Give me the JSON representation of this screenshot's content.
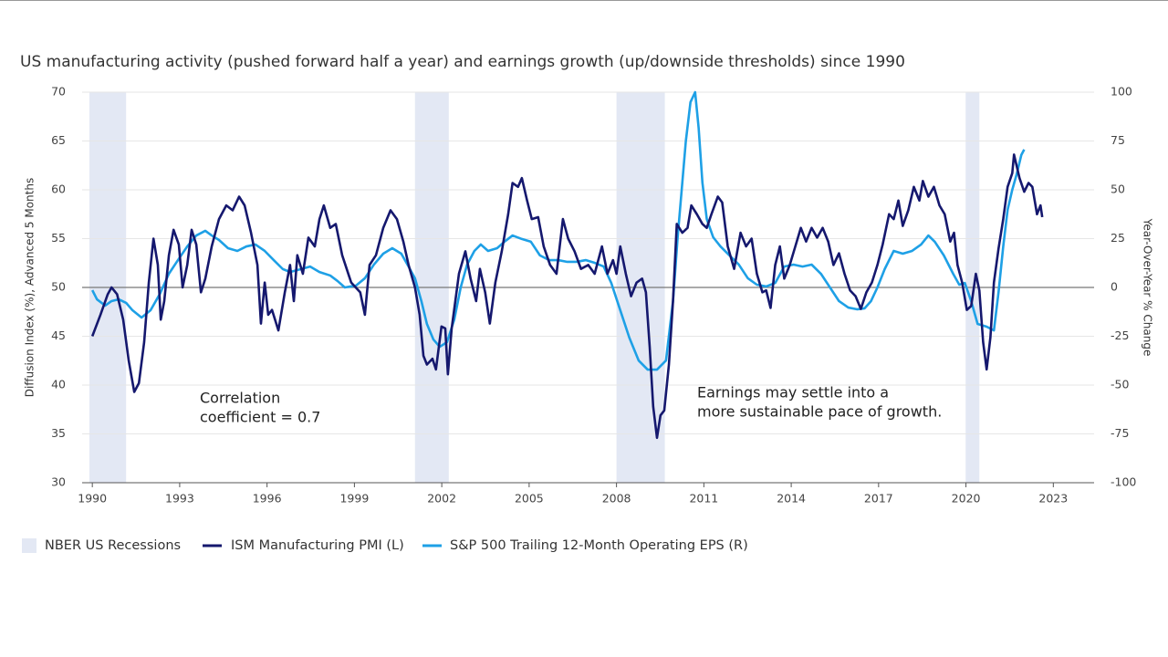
{
  "chart_data": {
    "type": "line",
    "title": "US manufacturing activity (pushed forward half a year) and earnings growth (up/downside thresholds) since 1990",
    "y_label": "Diffusion Index (%), Advanced 5 Months",
    "y2_label": "Year-Over-Year % Change",
    "xlim": [
      1989.65,
      2024.4
    ],
    "xticks": [
      1990,
      1993,
      1996,
      1999,
      2002,
      2005,
      2008,
      2011,
      2014,
      2017,
      2020,
      2023
    ],
    "ylim": [
      30,
      70
    ],
    "yticks": [
      30,
      35,
      40,
      45,
      50,
      55,
      60,
      65,
      70
    ],
    "y2lim": [
      -100,
      100
    ],
    "y2ticks": [
      -100,
      -75,
      -50,
      -25,
      0,
      25,
      50,
      75,
      100
    ],
    "grid": true,
    "reference_line": 50,
    "recessions": {
      "name": "NBER US Recessions",
      "color": "#e3e8f4",
      "periods": [
        [
          1989.9,
          1991.16
        ],
        [
          2001.08,
          2002.24
        ],
        [
          2008.0,
          2009.66
        ],
        [
          2019.99,
          2020.46
        ]
      ]
    },
    "annotations": [
      [
        "Correlation",
        "coefficient = 0.7"
      ],
      [
        "Earnings may settle into a",
        "more sustainable pace of growth."
      ]
    ],
    "series": [
      {
        "name": "ISM Manufacturing PMI (L)",
        "color": "#15186e",
        "axis": "y",
        "x": [
          1990.0,
          1990.28,
          1990.53,
          1990.66,
          1990.85,
          1991.06,
          1991.25,
          1991.44,
          1991.6,
          1991.78,
          1991.94,
          1992.1,
          1992.25,
          1992.35,
          1992.47,
          1992.63,
          1992.79,
          1992.97,
          1993.1,
          1993.26,
          1993.41,
          1993.57,
          1993.73,
          1993.88,
          1994.1,
          1994.35,
          1994.6,
          1994.82,
          1995.04,
          1995.23,
          1995.45,
          1995.67,
          1995.79,
          1995.92,
          1996.04,
          1996.17,
          1996.39,
          1996.61,
          1996.79,
          1996.92,
          1997.04,
          1997.23,
          1997.42,
          1997.64,
          1997.8,
          1997.95,
          1998.17,
          1998.36,
          1998.58,
          1998.89,
          1999.2,
          1999.36,
          1999.52,
          1999.74,
          1999.99,
          2000.24,
          2000.46,
          2000.68,
          2000.86,
          2001.08,
          2001.24,
          2001.37,
          2001.49,
          2001.68,
          2001.8,
          2001.99,
          2002.12,
          2002.21,
          2002.34,
          2002.59,
          2002.81,
          2002.99,
          2003.18,
          2003.31,
          2003.49,
          2003.65,
          2003.84,
          2004.06,
          2004.28,
          2004.43,
          2004.62,
          2004.75,
          2004.93,
          2005.09,
          2005.31,
          2005.5,
          2005.72,
          2005.94,
          2006.16,
          2006.34,
          2006.56,
          2006.78,
          2007.03,
          2007.25,
          2007.5,
          2007.69,
          2007.88,
          2008.0,
          2008.13,
          2008.32,
          2008.5,
          2008.69,
          2008.88,
          2009.01,
          2009.14,
          2009.26,
          2009.39,
          2009.51,
          2009.64,
          2009.8,
          2009.94,
          2010.07,
          2010.26,
          2010.44,
          2010.57,
          2010.76,
          2010.95,
          2011.1,
          2011.26,
          2011.48,
          2011.63,
          2011.82,
          2012.04,
          2012.26,
          2012.45,
          2012.64,
          2012.82,
          2013.01,
          2013.14,
          2013.29,
          2013.45,
          2013.61,
          2013.76,
          2013.95,
          2014.14,
          2014.33,
          2014.51,
          2014.7,
          2014.89,
          2015.08,
          2015.27,
          2015.45,
          2015.64,
          2015.83,
          2016.02,
          2016.21,
          2016.39,
          2016.58,
          2016.77,
          2016.96,
          2017.14,
          2017.36,
          2017.52,
          2017.68,
          2017.83,
          2018.02,
          2018.21,
          2018.4,
          2018.52,
          2018.71,
          2018.9,
          2019.09,
          2019.27,
          2019.46,
          2019.59,
          2019.71,
          2019.87,
          2020.03,
          2020.18,
          2020.34,
          2020.46,
          2020.59,
          2020.71,
          2020.84,
          2020.96,
          2021.12,
          2021.28,
          2021.43,
          2021.59,
          2021.65,
          2021.84,
          2022.0,
          2022.15,
          2022.28,
          2022.44,
          2022.56,
          2022.62
        ],
        "values": [
          45.0,
          47.2,
          49.3,
          50.0,
          49.3,
          46.7,
          42.5,
          39.3,
          40.2,
          44.4,
          50.5,
          55.0,
          52.3,
          46.7,
          48.6,
          53.3,
          55.9,
          54.4,
          50.0,
          52.3,
          55.9,
          54.4,
          49.5,
          50.9,
          54.2,
          57.0,
          58.4,
          57.9,
          59.3,
          58.4,
          55.6,
          52.3,
          46.3,
          50.5,
          47.2,
          47.7,
          45.6,
          49.5,
          52.3,
          48.6,
          53.3,
          51.4,
          55.1,
          54.2,
          57.0,
          58.4,
          56.1,
          56.5,
          53.3,
          50.5,
          49.5,
          47.2,
          52.3,
          53.3,
          56.1,
          57.9,
          57.0,
          54.7,
          52.3,
          50.0,
          47.2,
          43.0,
          42.1,
          42.7,
          41.6,
          46.0,
          45.8,
          41.1,
          45.8,
          51.4,
          53.7,
          50.9,
          48.6,
          51.9,
          49.5,
          46.3,
          50.5,
          53.7,
          57.5,
          60.7,
          60.3,
          61.2,
          58.9,
          57.0,
          57.2,
          54.2,
          52.3,
          51.4,
          57.0,
          55.0,
          53.7,
          51.9,
          52.3,
          51.4,
          54.2,
          51.4,
          52.8,
          51.4,
          54.2,
          51.4,
          49.1,
          50.5,
          50.9,
          49.5,
          43.9,
          37.8,
          34.6,
          36.9,
          37.4,
          42.1,
          48.6,
          56.5,
          55.6,
          56.1,
          58.4,
          57.5,
          56.5,
          56.1,
          57.5,
          59.3,
          58.7,
          54.2,
          51.9,
          55.6,
          54.2,
          55.0,
          51.4,
          49.5,
          49.7,
          47.9,
          52.3,
          54.2,
          50.9,
          52.3,
          54.2,
          56.1,
          54.7,
          56.1,
          55.1,
          56.1,
          54.7,
          52.3,
          53.5,
          51.4,
          49.7,
          49.1,
          47.8,
          49.5,
          50.5,
          52.3,
          54.4,
          57.5,
          57.0,
          58.9,
          56.3,
          57.9,
          60.3,
          58.9,
          60.9,
          59.3,
          60.3,
          58.4,
          57.5,
          54.7,
          55.6,
          52.3,
          50.5,
          47.7,
          48.1,
          51.4,
          49.7,
          44.4,
          41.6,
          44.9,
          50.5,
          54.0,
          57.0,
          60.3,
          61.7,
          63.6,
          61.2,
          59.8,
          60.7,
          60.3,
          57.5,
          58.4,
          57.2
        ]
      },
      {
        "name": "S&P 500 Trailing 12-Month Operating EPS (R)",
        "color": "#1ea0e6",
        "axis": "y2",
        "x": [
          1990.0,
          1990.16,
          1990.44,
          1990.66,
          1990.91,
          1991.16,
          1991.38,
          1991.69,
          1992.0,
          1992.32,
          1992.63,
          1992.94,
          1993.26,
          1993.57,
          1993.88,
          1994.1,
          1994.35,
          1994.66,
          1994.98,
          1995.29,
          1995.6,
          1995.92,
          1996.23,
          1996.54,
          1996.79,
          1997.17,
          1997.48,
          1997.8,
          1998.17,
          1998.42,
          1998.67,
          1999.05,
          1999.36,
          1999.67,
          1999.99,
          2000.3,
          2000.61,
          2000.86,
          2001.08,
          2001.3,
          2001.49,
          2001.71,
          2001.93,
          2002.18,
          2002.43,
          2002.65,
          2002.87,
          2003.12,
          2003.34,
          2003.59,
          2003.9,
          2004.15,
          2004.43,
          2004.75,
          2005.06,
          2005.37,
          2005.69,
          2006.0,
          2006.31,
          2006.63,
          2006.94,
          2007.25,
          2007.56,
          2007.82,
          2008.13,
          2008.44,
          2008.76,
          2009.07,
          2009.39,
          2009.7,
          2009.94,
          2010.1,
          2010.26,
          2010.38,
          2010.54,
          2010.7,
          2010.82,
          2010.95,
          2011.1,
          2011.32,
          2011.57,
          2011.88,
          2012.2,
          2012.51,
          2012.82,
          2013.14,
          2013.45,
          2013.76,
          2014.08,
          2014.39,
          2014.7,
          2015.02,
          2015.33,
          2015.64,
          2015.96,
          2016.27,
          2016.52,
          2016.74,
          2016.96,
          2017.21,
          2017.52,
          2017.83,
          2018.15,
          2018.46,
          2018.71,
          2018.93,
          2019.24,
          2019.56,
          2019.77,
          2019.96,
          2020.18,
          2020.4,
          2020.71,
          2020.96,
          2021.12,
          2021.28,
          2021.43,
          2021.59,
          2021.75,
          2021.9,
          2022.0
        ],
        "values": [
          -1.4,
          -6.1,
          -9.3,
          -7.0,
          -6.1,
          -7.9,
          -11.7,
          -15.4,
          -11.7,
          -3.3,
          7.0,
          14.0,
          21.0,
          26.6,
          29.0,
          26.6,
          24.3,
          20.1,
          18.7,
          21.0,
          22.0,
          18.7,
          14.0,
          9.4,
          7.9,
          9.4,
          10.7,
          7.9,
          6.1,
          3.3,
          0.0,
          0.9,
          4.7,
          11.7,
          17.3,
          20.1,
          17.3,
          10.7,
          4.7,
          -7.0,
          -18.7,
          -26.6,
          -30.4,
          -28.0,
          -16.4,
          0.0,
          11.7,
          18.7,
          22.0,
          18.7,
          20.1,
          23.4,
          26.6,
          24.8,
          23.4,
          16.4,
          14.0,
          14.0,
          13.1,
          13.1,
          14.0,
          12.6,
          10.7,
          2.3,
          -11.7,
          -25.7,
          -37.4,
          -42.1,
          -42.1,
          -37.4,
          -7.0,
          25.7,
          53.7,
          74.8,
          94.9,
          100,
          81.8,
          53.7,
          35.0,
          25.7,
          21.0,
          16.4,
          11.7,
          4.7,
          1.4,
          0.5,
          2.3,
          10.7,
          11.7,
          10.7,
          11.7,
          7.0,
          0.0,
          -7.0,
          -10.3,
          -11.2,
          -10.7,
          -7.0,
          0.0,
          9.4,
          18.7,
          17.3,
          18.7,
          22.0,
          26.6,
          23.4,
          16.4,
          7.0,
          1.4,
          2.3,
          -7.0,
          -18.7,
          -20.1,
          -22.0,
          -2.3,
          21.0,
          39.7,
          50.0,
          58.4,
          67.8,
          70.6
        ]
      }
    ]
  }
}
